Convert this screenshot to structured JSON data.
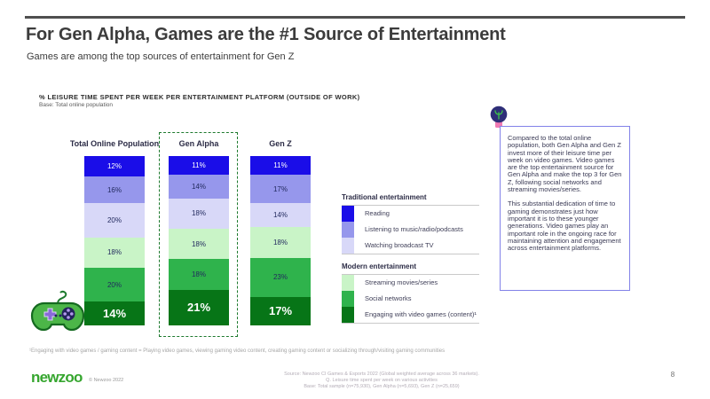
{
  "slide": {
    "title": "For Gen Alpha, Games are the #1 Source of Entertainment",
    "subtitle": "Games are among the top sources of entertainment for Gen Z",
    "page_number": "8"
  },
  "chart": {
    "heading": "% LEISURE TIME SPENT PER WEEK PER ENTERTAINMENT PLATFORM (OUTSIDE OF WORK)",
    "base_note": "Base: Total online population"
  },
  "chart_data": {
    "type": "bar",
    "stacked": true,
    "unit": "%",
    "stack_order": "top-to-bottom",
    "categories": [
      "Total Online Population",
      "Gen Alpha",
      "Gen Z"
    ],
    "highlighted_category": "Gen Alpha",
    "ylim": [
      0,
      100
    ],
    "series": [
      {
        "name": "Reading",
        "group": "Traditional entertainment",
        "color": "#1a0de8",
        "label_color": "#ffffff",
        "values": [
          12,
          11,
          11
        ]
      },
      {
        "name": "Listening to music/radio/podcasts",
        "group": "Traditional entertainment",
        "color": "#9697ec",
        "label_color": "#222a5e",
        "values": [
          16,
          14,
          17
        ]
      },
      {
        "name": "Watching broadcast TV",
        "group": "Traditional entertainment",
        "color": "#d8d8f8",
        "label_color": "#222a5e",
        "values": [
          20,
          18,
          14
        ]
      },
      {
        "name": "Streaming movies/series",
        "group": "Modern entertainment",
        "color": "#c9f4c7",
        "label_color": "#222a5e",
        "values": [
          18,
          18,
          18
        ]
      },
      {
        "name": "Social networks",
        "group": "Modern entertainment",
        "color": "#2fb34c",
        "label_color": "#222a5e",
        "values": [
          20,
          18,
          23
        ]
      },
      {
        "name": "Engaging with video games (content)¹",
        "group": "Modern entertainment",
        "color": "#077517",
        "label_color": "#ffffff",
        "values": [
          14,
          21,
          17
        ]
      }
    ]
  },
  "legend": {
    "groups": [
      {
        "title": "Traditional entertainment",
        "items": [
          {
            "label": "Reading",
            "color": "#1a0de8"
          },
          {
            "label": "Listening to music/radio/podcasts",
            "color": "#9697ec"
          },
          {
            "label": "Watching broadcast TV",
            "color": "#d8d8f8"
          }
        ]
      },
      {
        "title": "Modern entertainment",
        "items": [
          {
            "label": "Streaming movies/series",
            "color": "#c9f4c7"
          },
          {
            "label": "Social networks",
            "color": "#2fb34c"
          },
          {
            "label": "Engaging with video games (content)¹",
            "color": "#077517"
          }
        ]
      }
    ]
  },
  "annotation": {
    "paragraphs": [
      "Compared to the total online population, both Gen Alpha and Gen Z invest more of their leisure time per week on video games. Video games are the top entertainment source for Gen Alpha and make the top 3 for Gen Z, following social networks and streaming movies/series.",
      "This substantial dedication of time to gaming demonstrates just how important it is to these younger generations. Video games play an important role in the ongoing race for maintaining attention and engagement across entertainment platforms."
    ]
  },
  "footnote": "¹Engaging with video games / gaming content = Playing video games, viewing gaming video content, creating gaming content or socializing through/visiting gaming communities",
  "footer": {
    "logo_text": "newzoo",
    "copyright": "© Newzoo 2022",
    "source_lines": [
      "Source: Newzoo CI Games & Esports 2022 (Global weighted average across 36 markets).",
      "Q. Leisure time spent per week on various activities",
      "Base: Total sample (n=75,930), Gen Alpha (n=5,693), Gen Z (n=25,659)"
    ]
  },
  "colors": {
    "accent_green": "#36a62f",
    "highlight_border": "#1e7a2e",
    "annotation_border": "#8282e8",
    "top_rule": "#4f4f4f"
  }
}
